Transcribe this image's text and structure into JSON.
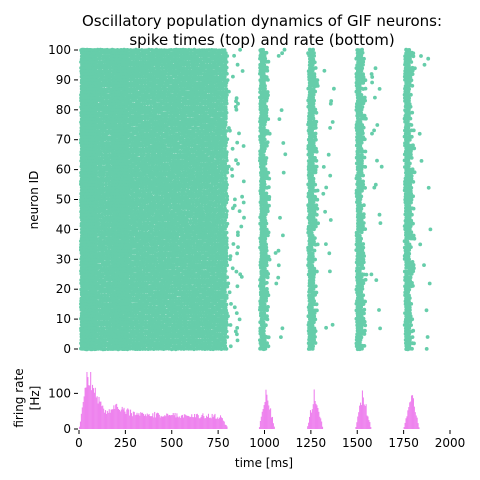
{
  "chart_data": [
    {
      "type": "scatter",
      "title_lines": [
        "Oscillatory population dynamics of GIF neurons:",
        "spike times (top) and rate (bottom)"
      ],
      "ylabel": "neuron ID",
      "xlim": [
        0,
        2000
      ],
      "ylim": [
        0,
        100
      ],
      "yticks": [
        "0",
        "10",
        "20",
        "30",
        "40",
        "50",
        "60",
        "70",
        "80",
        "90",
        "100"
      ],
      "marker_color": "#66cdaa",
      "neurons": 100,
      "phases": [
        {
          "from_ms": 0,
          "to_ms": 800,
          "description": "asynchronous dense firing, dense bursts around 20-90 ms and 170-260 ms"
        },
        {
          "from_ms": 800,
          "to_ms": 2000,
          "description": "synchronous bursts every ~260 ms"
        }
      ],
      "burst_centers_ms": [
        1000,
        1260,
        1520,
        1780
      ],
      "burst_width_ms": 50
    },
    {
      "type": "bar",
      "ylabel_lines": [
        "firing rate",
        "[Hz]"
      ],
      "xlabel": "time [ms]",
      "xlim": [
        0,
        2000
      ],
      "ylim": [
        0,
        160
      ],
      "xticks": [
        "0",
        "250",
        "500",
        "750",
        "1000",
        "1250",
        "1500",
        "1750",
        "2000"
      ],
      "yticks": [
        "0",
        "100"
      ],
      "bar_color": "#ee82ee",
      "bin_ms": 5,
      "profile": [
        {
          "t_ms": 20,
          "rate": 60
        },
        {
          "t_ms": 45,
          "rate": 160
        },
        {
          "t_ms": 80,
          "rate": 110
        },
        {
          "t_ms": 150,
          "rate": 45
        },
        {
          "t_ms": 200,
          "rate": 65
        },
        {
          "t_ms": 300,
          "rate": 40
        },
        {
          "t_ms": 400,
          "rate": 40
        },
        {
          "t_ms": 600,
          "rate": 38
        },
        {
          "t_ms": 760,
          "rate": 35
        },
        {
          "t_ms": 800,
          "rate": 5
        },
        {
          "t_ms": 1000,
          "rate": 105
        },
        {
          "t_ms": 1260,
          "rate": 105
        },
        {
          "t_ms": 1520,
          "rate": 100
        },
        {
          "t_ms": 1780,
          "rate": 105
        }
      ]
    }
  ]
}
